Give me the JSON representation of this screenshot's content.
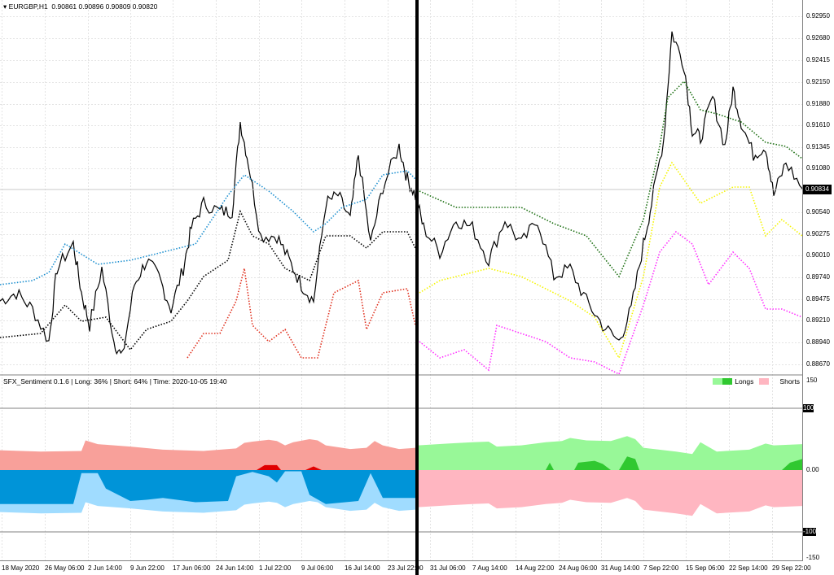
{
  "header": {
    "symbol": "EURGBP,H1",
    "ohlc": "0.90861 0.90896 0.90809 0.90820",
    "dropdown_icon": "triangle-down-icon"
  },
  "current_price": "0.90834",
  "indicator": {
    "title": "SFX_Sentiment 0.1.6 | Long: 36% | Short: 64% | Time: 2020-10-05 19:40",
    "legend_longs": "Longs",
    "legend_shorts": "Shorts",
    "levels": [
      "150",
      "100",
      "0.00",
      "-100",
      "-150"
    ]
  },
  "colors": {
    "price": "#000000",
    "blue_line": "#1e90d0",
    "red_line": "#e0301e",
    "green_line": "#1a6e10",
    "yellow_line": "#f5f500",
    "magenta_line": "#ff30ff",
    "long_left": "#f8a09a",
    "long_left_dark": "#e00000",
    "short_left": "#a0dcff",
    "short_left_dark": "#0094d8",
    "long_right": "#98f898",
    "long_right_dark": "#30c830",
    "short_right": "#ffb6c1"
  },
  "chart_data": {
    "type": "line",
    "price_axis": {
      "ticks": [
        "0.92950",
        "0.92680",
        "0.92415",
        "0.92150",
        "0.91880",
        "0.91610",
        "0.91345",
        "0.91080",
        "0.90540",
        "0.90275",
        "0.90010",
        "0.89740",
        "0.89475",
        "0.89210",
        "0.88940",
        "0.88670"
      ],
      "range": [
        0.8855,
        0.9315
      ]
    },
    "time_axis": {
      "ticks": [
        "18 May 2020",
        "26 May 06:00",
        "2 Jun 14:00",
        "9 Jun 22:00",
        "17 Jun 06:00",
        "24 Jun 14:00",
        "1 Jul 22:00",
        "9 Jul 06:00",
        "16 Jul 14:00",
        "23 Jul 22:00",
        "31 Jul 06:00",
        "7 Aug 14:00",
        "14 Aug 22:00",
        "24 Aug 06:00",
        "31 Aug 14:00",
        "7 Sep 22:00",
        "15 Sep 06:00",
        "22 Sep 14:00",
        "29 Sep 22:00"
      ],
      "range": [
        0,
        98.5
      ],
      "divider_t": 51.2
    },
    "series": [
      {
        "name": "price",
        "points": [
          [
            0,
            0.8945
          ],
          [
            2,
            0.8955
          ],
          [
            4,
            0.8935
          ],
          [
            6,
            0.8895
          ],
          [
            7,
            0.8985
          ],
          [
            9,
            0.9015
          ],
          [
            10,
            0.8955
          ],
          [
            11,
            0.8915
          ],
          [
            12.5,
            0.8985
          ],
          [
            14,
            0.8895
          ],
          [
            15,
            0.8875
          ],
          [
            16.5,
            0.8965
          ],
          [
            18,
            0.8995
          ],
          [
            19.5,
            0.8975
          ],
          [
            21,
            0.8935
          ],
          [
            22.5,
            0.8985
          ],
          [
            23.5,
            0.9035
          ],
          [
            25,
            0.9065
          ],
          [
            27,
            0.9055
          ],
          [
            28.5,
            0.9055
          ],
          [
            29.5,
            0.9165
          ],
          [
            30.5,
            0.9115
          ],
          [
            32,
            0.9025
          ],
          [
            34,
            0.9025
          ],
          [
            35.5,
            0.8995
          ],
          [
            37,
            0.8965
          ],
          [
            38.5,
            0.8945
          ],
          [
            40,
            0.9065
          ],
          [
            41.5,
            0.9075
          ],
          [
            43,
            0.9045
          ],
          [
            44,
            0.9125
          ],
          [
            45.5,
            0.9015
          ],
          [
            47,
            0.9085
          ],
          [
            49,
            0.9135
          ],
          [
            50,
            0.9095
          ],
          [
            51,
            0.9075
          ],
          [
            52,
            0.9035
          ],
          [
            54,
            0.9005
          ],
          [
            56,
            0.9045
          ],
          [
            58,
            0.9035
          ],
          [
            60,
            0.8995
          ],
          [
            62,
            0.9045
          ],
          [
            64,
            0.9015
          ],
          [
            66,
            0.9045
          ],
          [
            68,
            0.8975
          ],
          [
            70,
            0.8985
          ],
          [
            72,
            0.8945
          ],
          [
            74,
            0.8915
          ],
          [
            76,
            0.8895
          ],
          [
            77.5,
            0.8935
          ],
          [
            79,
            0.9015
          ],
          [
            80,
            0.9065
          ],
          [
            81.5,
            0.9145
          ],
          [
            82.5,
            0.9275
          ],
          [
            84,
            0.9235
          ],
          [
            85,
            0.9155
          ],
          [
            86,
            0.9145
          ],
          [
            87.5,
            0.9195
          ],
          [
            89,
            0.9135
          ],
          [
            90,
            0.9205
          ],
          [
            91,
            0.9165
          ],
          [
            92.5,
            0.9125
          ],
          [
            94,
            0.9135
          ],
          [
            95,
            0.9075
          ],
          [
            96.5,
            0.9115
          ],
          [
            98.5,
            0.9083
          ]
        ]
      },
      {
        "name": "black_dotted",
        "points": [
          [
            0,
            0.89
          ],
          [
            5,
            0.8905
          ],
          [
            8,
            0.894
          ],
          [
            10,
            0.892
          ],
          [
            13,
            0.8925
          ],
          [
            16,
            0.8885
          ],
          [
            18,
            0.891
          ],
          [
            21,
            0.892
          ],
          [
            23,
            0.8945
          ],
          [
            25,
            0.8975
          ],
          [
            28,
            0.8995
          ],
          [
            29.5,
            0.9055
          ],
          [
            31,
            0.9025
          ],
          [
            33,
            0.9015
          ],
          [
            35,
            0.8985
          ],
          [
            38,
            0.897
          ],
          [
            40,
            0.9025
          ],
          [
            43,
            0.9025
          ],
          [
            45,
            0.901
          ],
          [
            47,
            0.903
          ],
          [
            50,
            0.903
          ],
          [
            51,
            0.901
          ]
        ]
      },
      {
        "name": "blue_dotted",
        "points": [
          [
            0,
            0.8965
          ],
          [
            4,
            0.897
          ],
          [
            6,
            0.898
          ],
          [
            8,
            0.9015
          ],
          [
            12,
            0.899
          ],
          [
            16,
            0.8995
          ],
          [
            20,
            0.9005
          ],
          [
            24,
            0.9015
          ],
          [
            28,
            0.9075
          ],
          [
            30,
            0.91
          ],
          [
            33,
            0.908
          ],
          [
            36,
            0.9055
          ],
          [
            38.5,
            0.903
          ],
          [
            40,
            0.904
          ],
          [
            42,
            0.906
          ],
          [
            45,
            0.907
          ],
          [
            47,
            0.91
          ],
          [
            50,
            0.9105
          ],
          [
            51,
            0.9095
          ]
        ]
      },
      {
        "name": "red_dotted",
        "points": [
          [
            23,
            0.8875
          ],
          [
            25,
            0.8905
          ],
          [
            27,
            0.8905
          ],
          [
            29,
            0.8945
          ],
          [
            30,
            0.8985
          ],
          [
            31,
            0.8915
          ],
          [
            33,
            0.8895
          ],
          [
            35,
            0.891
          ],
          [
            37,
            0.8875
          ],
          [
            39,
            0.8875
          ],
          [
            41,
            0.8955
          ],
          [
            44,
            0.897
          ],
          [
            45,
            0.891
          ],
          [
            47,
            0.8955
          ],
          [
            50,
            0.896
          ],
          [
            51,
            0.8915
          ]
        ]
      },
      {
        "name": "green_dotted",
        "points": [
          [
            51.5,
            0.908
          ],
          [
            56,
            0.906
          ],
          [
            60,
            0.906
          ],
          [
            64,
            0.906
          ],
          [
            68,
            0.904
          ],
          [
            72,
            0.9025
          ],
          [
            76,
            0.8975
          ],
          [
            79,
            0.9045
          ],
          [
            81,
            0.9135
          ],
          [
            82,
            0.9195
          ],
          [
            84,
            0.9215
          ],
          [
            86,
            0.918
          ],
          [
            88,
            0.9175
          ],
          [
            91,
            0.9165
          ],
          [
            94,
            0.914
          ],
          [
            96.5,
            0.9135
          ],
          [
            98.5,
            0.912
          ]
        ]
      },
      {
        "name": "yellow_dotted",
        "points": [
          [
            51.5,
            0.8955
          ],
          [
            54,
            0.897
          ],
          [
            56,
            0.8975
          ],
          [
            60,
            0.8985
          ],
          [
            64,
            0.8975
          ],
          [
            67,
            0.896
          ],
          [
            70,
            0.8945
          ],
          [
            73,
            0.8925
          ],
          [
            76,
            0.8875
          ],
          [
            79,
            0.8975
          ],
          [
            81,
            0.9085
          ],
          [
            82.5,
            0.9115
          ],
          [
            86,
            0.9065
          ],
          [
            90,
            0.9085
          ],
          [
            92,
            0.9085
          ],
          [
            94,
            0.9025
          ],
          [
            96,
            0.9045
          ],
          [
            98.5,
            0.9025
          ]
        ]
      },
      {
        "name": "magenta_dotted",
        "points": [
          [
            51.5,
            0.8895
          ],
          [
            54,
            0.8875
          ],
          [
            57,
            0.8885
          ],
          [
            60,
            0.886
          ],
          [
            61,
            0.8915
          ],
          [
            64,
            0.8905
          ],
          [
            67,
            0.8895
          ],
          [
            70,
            0.8875
          ],
          [
            73,
            0.887
          ],
          [
            76,
            0.8855
          ],
          [
            79,
            0.894
          ],
          [
            81,
            0.9005
          ],
          [
            83,
            0.903
          ],
          [
            85,
            0.9015
          ],
          [
            87,
            0.8965
          ],
          [
            90,
            0.9005
          ],
          [
            92,
            0.8985
          ],
          [
            94,
            0.8935
          ],
          [
            96,
            0.8935
          ],
          [
            98.5,
            0.8925
          ]
        ]
      }
    ],
    "sentiment": {
      "range": [
        -150,
        150
      ],
      "long_pct": [
        [
          0,
          32
        ],
        [
          5,
          30
        ],
        [
          10,
          31
        ],
        [
          10.5,
          48
        ],
        [
          12,
          42
        ],
        [
          16,
          38
        ],
        [
          20,
          33
        ],
        [
          25,
          31
        ],
        [
          29,
          35
        ],
        [
          30,
          44
        ],
        [
          31,
          46
        ],
        [
          33,
          49
        ],
        [
          34,
          47
        ],
        [
          35,
          40
        ],
        [
          36,
          45
        ],
        [
          38,
          50
        ],
        [
          39,
          48
        ],
        [
          40,
          40
        ],
        [
          43,
          34
        ],
        [
          45,
          36
        ],
        [
          46,
          47
        ],
        [
          47,
          40
        ],
        [
          49,
          34
        ],
        [
          51,
          36
        ],
        [
          51.3,
          40
        ],
        [
          55,
          43
        ],
        [
          58,
          45
        ],
        [
          60,
          46
        ],
        [
          61,
          38
        ],
        [
          64,
          40
        ],
        [
          67,
          45
        ],
        [
          69,
          47
        ],
        [
          70,
          52
        ],
        [
          72,
          48
        ],
        [
          75,
          47
        ],
        [
          77,
          55
        ],
        [
          78,
          50
        ],
        [
          79,
          36
        ],
        [
          83,
          30
        ],
        [
          85,
          26
        ],
        [
          86,
          45
        ],
        [
          88,
          30
        ],
        [
          92,
          33
        ],
        [
          94,
          43
        ],
        [
          95,
          40
        ],
        [
          98.5,
          42
        ]
      ],
      "short_dark_left": [
        [
          0,
          -55
        ],
        [
          9,
          -55
        ],
        [
          10,
          -5
        ],
        [
          12,
          -5
        ],
        [
          13,
          -30
        ],
        [
          16,
          -50
        ],
        [
          18,
          -48
        ],
        [
          20,
          -45
        ],
        [
          24,
          -52
        ],
        [
          28,
          -50
        ],
        [
          29,
          -10
        ],
        [
          31,
          -3
        ],
        [
          33,
          -10
        ],
        [
          34,
          -20
        ],
        [
          35,
          -2
        ],
        [
          37,
          -2
        ],
        [
          38,
          -40
        ],
        [
          40,
          -55
        ],
        [
          44,
          -50
        ],
        [
          45.5,
          -5
        ],
        [
          47,
          -45
        ],
        [
          51,
          -45
        ]
      ],
      "long_dark_left": [
        [
          31.5,
          0
        ],
        [
          32.5,
          8
        ],
        [
          34,
          8
        ],
        [
          34.5,
          0
        ],
        [
          37.5,
          0
        ],
        [
          38.5,
          6
        ],
        [
          39.5,
          0
        ]
      ],
      "long_dark_right": [
        [
          67,
          0
        ],
        [
          67.5,
          12
        ],
        [
          68,
          0
        ],
        [
          70.5,
          0
        ],
        [
          71,
          12
        ],
        [
          73,
          15
        ],
        [
          74,
          10
        ],
        [
          75,
          0
        ],
        [
          76,
          0
        ],
        [
          77,
          22
        ],
        [
          78,
          18
        ],
        [
          78.5,
          0
        ],
        [
          96,
          0
        ],
        [
          97,
          12
        ],
        [
          98.5,
          18
        ]
      ]
    }
  }
}
